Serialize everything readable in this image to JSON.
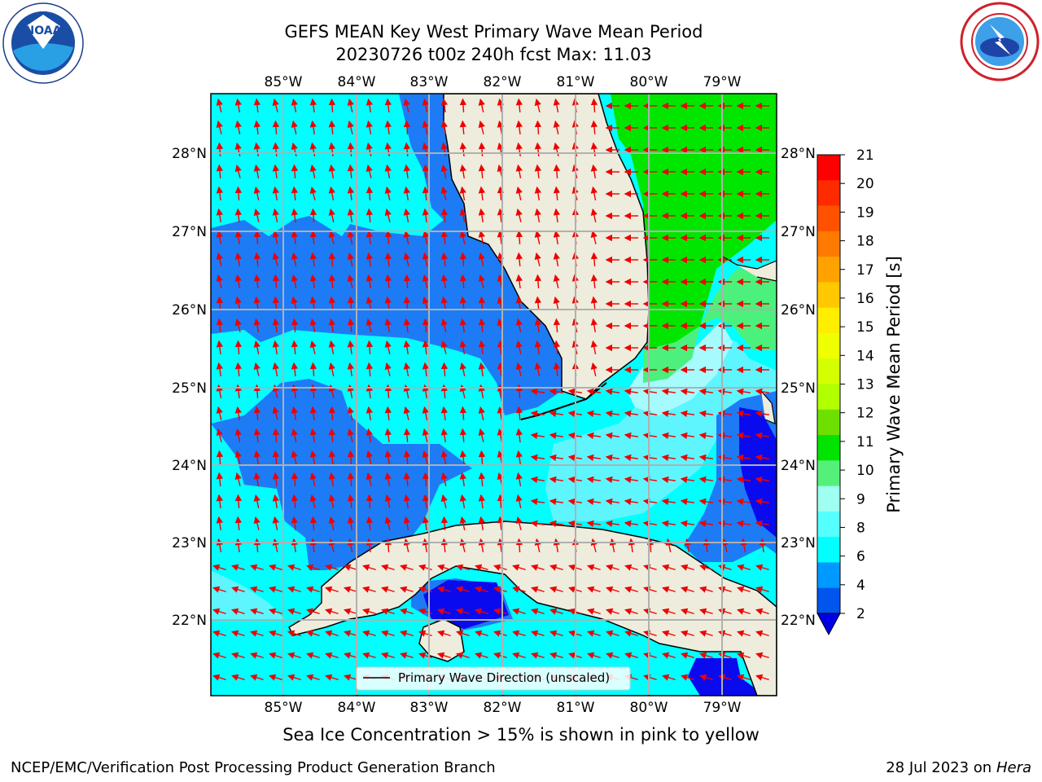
{
  "header": {
    "title_line1": "GEFS MEAN Key West Primary Wave Mean Period",
    "title_line2": "20230726 t00z 240h fcst   Max: 11.03"
  },
  "logos": {
    "left": {
      "text": "NOAA",
      "ring_text": "NATIONAL OCEANIC AND ATMOSPHERIC ADMINISTRATION · U.S. DEPARTMENT OF COMMERCE"
    },
    "right": {
      "ring_text": "NATIONAL WEATHER SERVICE"
    }
  },
  "map": {
    "longitude_labels": [
      "85°W",
      "84°W",
      "83°W",
      "82°W",
      "81°W",
      "80°W",
      "79°W"
    ],
    "latitude_labels_left": [
      "28°N",
      "27°N",
      "26°N",
      "25°N",
      "24°N",
      "23°N",
      "22°N"
    ],
    "latitude_labels_right": [
      "28°N",
      "27°N",
      "26°N",
      "25°N",
      "24°N",
      "23°N",
      "22°N"
    ],
    "legend_label": "Primary Wave Direction (unscaled)"
  },
  "colorbar": {
    "label": "Primary Wave Mean Period [s]",
    "ticks": [
      "21",
      "20",
      "19",
      "18",
      "17",
      "16",
      "15",
      "14",
      "13",
      "12",
      "11",
      "10",
      "9",
      "8",
      "6",
      "4",
      "2"
    ],
    "colors_top_to_bottom": [
      "#ff0000",
      "#ff2a00",
      "#ff5200",
      "#ff7a00",
      "#ffa200",
      "#ffc800",
      "#ffee00",
      "#f0ff00",
      "#d4ff00",
      "#b2ff00",
      "#6ee000",
      "#00e400",
      "#55f07a",
      "#9ffff0",
      "#55ffff",
      "#00ffff",
      "#0099ff",
      "#0055ee"
    ],
    "extend_color": "#0000e6"
  },
  "colors": {
    "land": "#eeecdc",
    "arrow": "#ee0000",
    "blue": "#1e7bf6",
    "cyan": "#00ffff",
    "light_cyan": "#5ef5ff",
    "pale_cyan": "#a6fbff",
    "green": "#00e600",
    "light_green": "#4cf07c",
    "dark_blue": "#0a0aef"
  },
  "footer": {
    "note": "Sea Ice Concentration > 15% is shown in pink to yellow",
    "left": "NCEP/EMC/Verification Post Processing Product Generation Branch",
    "right_date": "28 Jul 2023 on ",
    "right_host": "Hera"
  }
}
